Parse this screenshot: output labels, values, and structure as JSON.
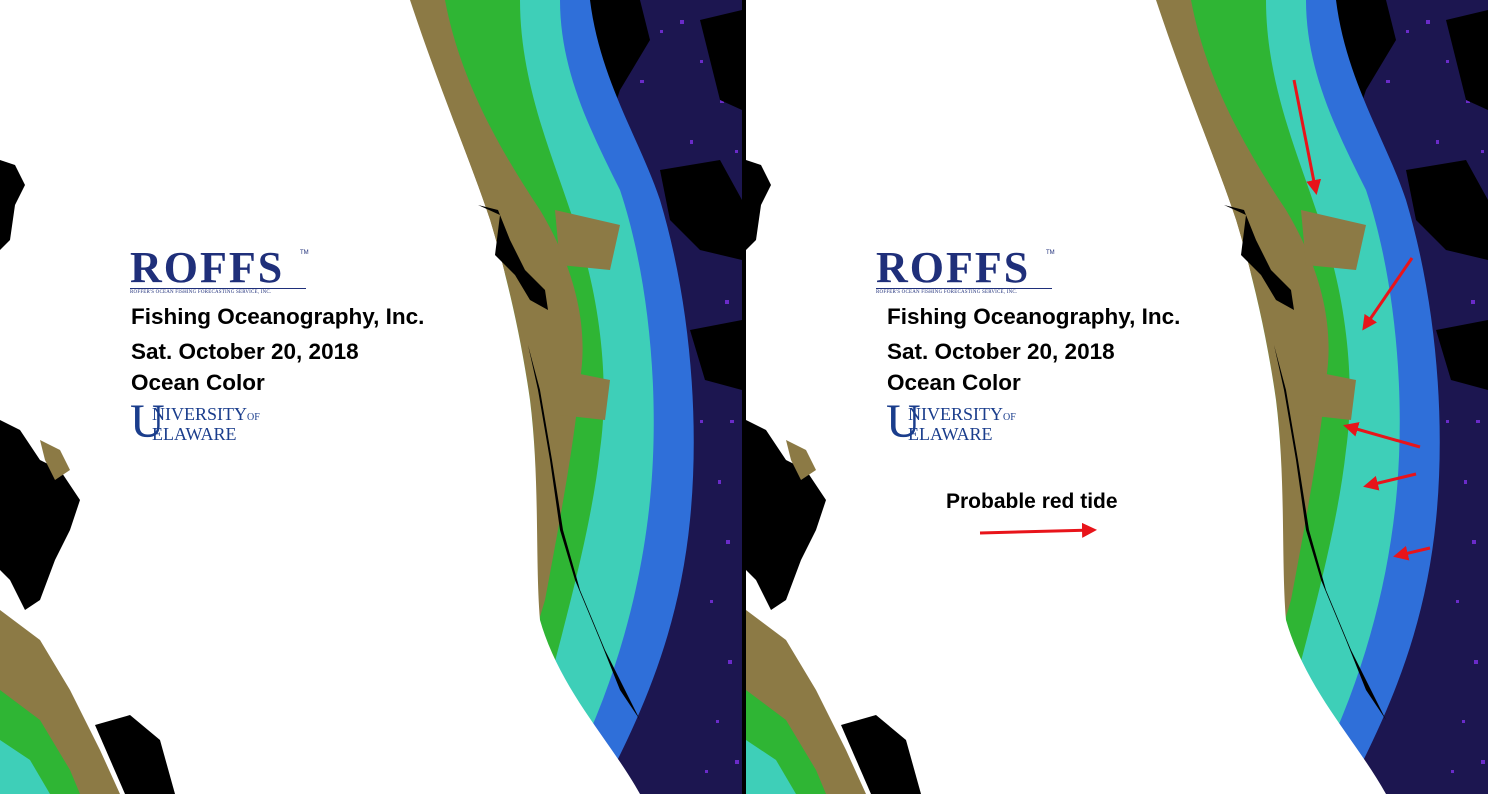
{
  "logo": {
    "name": "ROFFS",
    "trademark": "TM",
    "tagline": "ROFFER'S OCEAN FISHING FORECASTING SERVICE, INC."
  },
  "company": "Fishing Oceanography, Inc.",
  "date": "Sat. October 20, 2018",
  "product": "Ocean Color",
  "university": {
    "line1": "NIVERSITY",
    "of": "OF",
    "line2": "ELAWARE",
    "initials": "UD"
  },
  "legend": {
    "label": "Probable red tide",
    "arrow_color": "#e8141a"
  },
  "colors": {
    "land": "#000000",
    "no_data": "#ffffff",
    "high_chlorophyll": "#8c7a45",
    "green_water": "#2fb534",
    "cyan_water": "#3ecfb8",
    "blue_water": "#2f6fd9",
    "clear_water": "#1c1650",
    "cloud_speckle": "#6a2bc9"
  }
}
